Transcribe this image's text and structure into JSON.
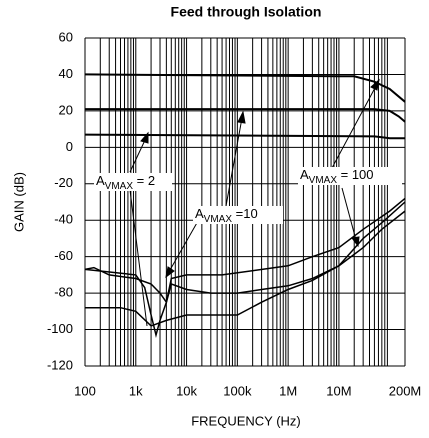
{
  "chart_data": {
    "type": "line",
    "title": "Feed through Isolation",
    "x_label": "FREQUENCY (Hz)",
    "y_label": "GAIN (dB)",
    "xscale": "log",
    "grid": true,
    "xlim": [
      100,
      200000000
    ],
    "ylim": [
      -120,
      60
    ],
    "xticks": [
      100,
      {
        "value": 1000,
        "label": "1k"
      },
      {
        "value": 10000,
        "label": "10k"
      },
      {
        "value": 100000,
        "label": "100k"
      },
      {
        "value": 1000000,
        "label": "1M"
      },
      {
        "value": 10000000,
        "label": "10M"
      },
      {
        "value": 200000000,
        "label": "200M"
      }
    ],
    "xminor": [
      200,
      300,
      400,
      500,
      600,
      700,
      800,
      900,
      2000,
      3000,
      4000,
      5000,
      6000,
      7000,
      8000,
      9000,
      20000,
      30000,
      40000,
      50000,
      60000,
      70000,
      80000,
      90000,
      200000,
      300000,
      400000,
      500000,
      600000,
      700000,
      800000,
      900000,
      2000000,
      3000000,
      4000000,
      5000000,
      6000000,
      7000000,
      8000000,
      9000000,
      20000000,
      30000000,
      40000000,
      50000000,
      60000000,
      70000000,
      80000000,
      90000000
    ],
    "yticks": [
      -120,
      -100,
      -80,
      -60,
      -40,
      -20,
      0,
      20,
      40,
      60
    ],
    "series": [
      {
        "color": "#000000",
        "x": [
          100,
          10000000,
          20000000,
          50000000,
          100000000,
          200000000
        ],
        "values": [
          40,
          39,
          39,
          36,
          32,
          25
        ]
      },
      {
        "color": "#000000",
        "x": [
          100,
          50000000,
          100000000,
          150000000,
          200000000
        ],
        "values": [
          21,
          21,
          20,
          17,
          14
        ]
      },
      {
        "color": "#000000",
        "x": [
          100,
          50000000,
          100000000,
          200000000
        ],
        "values": [
          7,
          6,
          5,
          5
        ]
      },
      {
        "color": "#000000",
        "x": [
          100,
          150,
          300,
          1000,
          2000,
          3000,
          4000,
          5000,
          10000,
          30000,
          100000,
          300000,
          1000000,
          3000000,
          10000000,
          30000000,
          70000000,
          200000000
        ],
        "values": [
          -67,
          -66,
          -70,
          -72,
          -75,
          -80,
          -85,
          -75,
          -78,
          -80,
          -80,
          -78,
          -76,
          -72,
          -65,
          -55,
          -45,
          -35
        ]
      },
      {
        "color": "#000000",
        "x": [
          100,
          1000,
          1500,
          2000,
          2500,
          3000,
          4000,
          5000,
          10000,
          50000,
          1000000,
          3000000,
          10000000,
          30000000,
          100000000,
          200000000
        ],
        "values": [
          -67,
          -70,
          -77,
          -92,
          -103,
          -95,
          -85,
          -72,
          -70,
          -70,
          -65,
          -60,
          -55,
          -45,
          -35,
          -28
        ]
      },
      {
        "color": "#000000",
        "x": [
          100,
          500,
          1000,
          2000,
          4000,
          10000,
          100000,
          300000,
          1000000,
          3000000,
          10000000,
          30000000,
          80000000,
          200000000
        ],
        "values": [
          -88,
          -88,
          -90,
          -98,
          -95,
          -92,
          -92,
          -85,
          -78,
          -73,
          -65,
          -50,
          -40,
          -30
        ]
      }
    ],
    "annotations": [
      {
        "main": "A",
        "sub": "VMAX",
        "rest": " = 2"
      },
      {
        "main": "A",
        "sub": "VMAX",
        "rest": " =10"
      },
      {
        "main": "A",
        "sub": "VMAX",
        "rest": " = 100"
      }
    ]
  }
}
